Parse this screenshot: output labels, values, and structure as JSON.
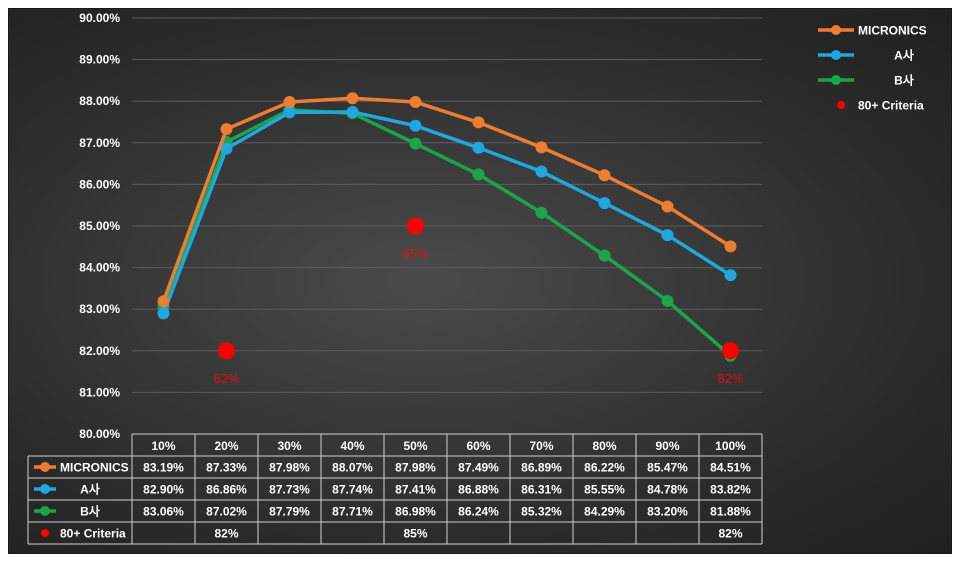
{
  "chart_data": {
    "type": "line",
    "categories": [
      "10%",
      "20%",
      "30%",
      "40%",
      "50%",
      "60%",
      "70%",
      "80%",
      "90%",
      "100%"
    ],
    "series": [
      {
        "name": "MICRONICS",
        "color": "#ee7d31",
        "values": [
          83.19,
          87.33,
          87.98,
          88.07,
          87.98,
          87.49,
          86.89,
          86.22,
          85.47,
          84.51
        ],
        "labels": [
          "83.19%",
          "87.33%",
          "87.98%",
          "88.07%",
          "87.98%",
          "87.49%",
          "86.89%",
          "86.22%",
          "85.47%",
          "84.51%"
        ]
      },
      {
        "name": "A사",
        "color": "#1fa8e0",
        "values": [
          82.9,
          86.86,
          87.73,
          87.74,
          87.41,
          86.88,
          86.31,
          85.55,
          84.78,
          83.82
        ],
        "labels": [
          "82.90%",
          "86.86%",
          "87.73%",
          "87.74%",
          "87.41%",
          "86.88%",
          "86.31%",
          "85.55%",
          "84.78%",
          "83.82%"
        ]
      },
      {
        "name": "B사",
        "color": "#1aa54a",
        "values": [
          83.06,
          87.02,
          87.79,
          87.71,
          86.98,
          86.24,
          85.32,
          84.29,
          83.2,
          81.88
        ],
        "labels": [
          "83.06%",
          "87.02%",
          "87.79%",
          "87.71%",
          "86.98%",
          "86.24%",
          "85.32%",
          "84.29%",
          "83.20%",
          "81.88%"
        ]
      }
    ],
    "criteria": {
      "name": "80+ Criteria",
      "color": "#ff0000",
      "points": [
        {
          "category": "20%",
          "value": 82,
          "label": "82%"
        },
        {
          "category": "50%",
          "value": 85,
          "label": "85%"
        },
        {
          "category": "100%",
          "value": 82,
          "label": "82%"
        }
      ]
    },
    "ylim": [
      80,
      90
    ],
    "yticks": [
      "80.00%",
      "81.00%",
      "82.00%",
      "83.00%",
      "84.00%",
      "85.00%",
      "86.00%",
      "87.00%",
      "88.00%",
      "89.00%",
      "90.00%"
    ],
    "grid": true,
    "legend_position": "top-right",
    "data_table": true,
    "title": "",
    "xlabel": "",
    "ylabel": ""
  }
}
